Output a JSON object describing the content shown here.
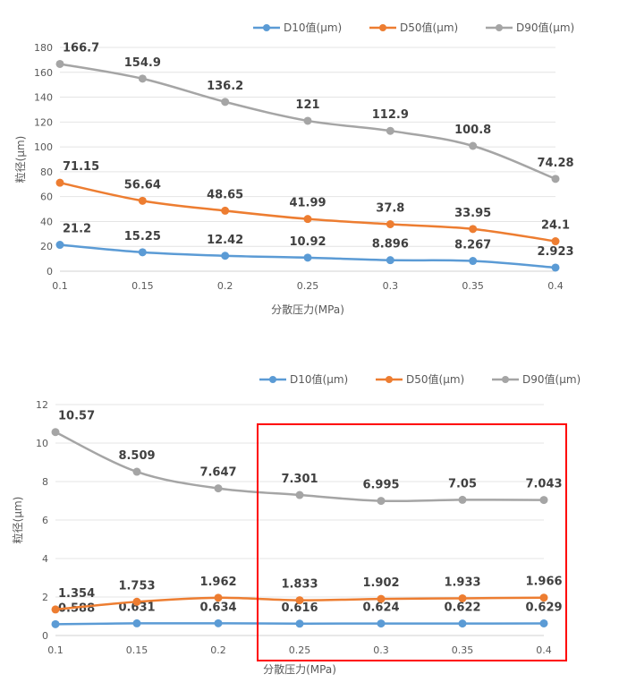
{
  "chart_data": [
    {
      "type": "line",
      "xlabel": "分散压力(MPa)",
      "ylabel": "粒径(μm)",
      "categories": [
        "0.1",
        "0.15",
        "0.2",
        "0.25",
        "0.3",
        "0.35",
        "0.4"
      ],
      "ylim": [
        0,
        180
      ],
      "yticks": [
        0,
        20,
        40,
        60,
        80,
        100,
        120,
        140,
        160,
        180
      ],
      "grid": true,
      "legend": "top-right",
      "series": [
        {
          "name": "D10值(μm)",
          "color": "#5B9BD5",
          "values": [
            21.2,
            15.25,
            12.42,
            10.92,
            8.896,
            8.267,
            2.923
          ]
        },
        {
          "name": "D50值(μm)",
          "color": "#ED7D31",
          "values": [
            71.15,
            56.64,
            48.65,
            41.99,
            37.8,
            33.95,
            24.1
          ]
        },
        {
          "name": "D90值(μm)",
          "color": "#A5A5A5",
          "values": [
            166.7,
            154.9,
            136.2,
            121,
            112.9,
            100.8,
            74.28
          ]
        }
      ]
    },
    {
      "type": "line",
      "xlabel": "分散压力(MPa)",
      "ylabel": "粒径(μm)",
      "categories": [
        "0.1",
        "0.15",
        "0.2",
        "0.25",
        "0.3",
        "0.35",
        "0.4"
      ],
      "ylim": [
        0,
        12
      ],
      "yticks": [
        0,
        2,
        4,
        6,
        8,
        10,
        12
      ],
      "grid": true,
      "legend": "top-right",
      "highlight": {
        "from": "0.25",
        "to": "0.4",
        "color": "#FF0000"
      },
      "series": [
        {
          "name": "D10值(μm)",
          "color": "#5B9BD5",
          "values": [
            0.588,
            0.631,
            0.634,
            0.616,
            0.624,
            0.622,
            0.629
          ]
        },
        {
          "name": "D50值(μm)",
          "color": "#ED7D31",
          "values": [
            1.354,
            1.753,
            1.962,
            1.833,
            1.902,
            1.933,
            1.966
          ]
        },
        {
          "name": "D90值(μm)",
          "color": "#A5A5A5",
          "values": [
            10.57,
            8.509,
            7.647,
            7.301,
            6.995,
            7.05,
            7.043
          ]
        }
      ]
    }
  ]
}
